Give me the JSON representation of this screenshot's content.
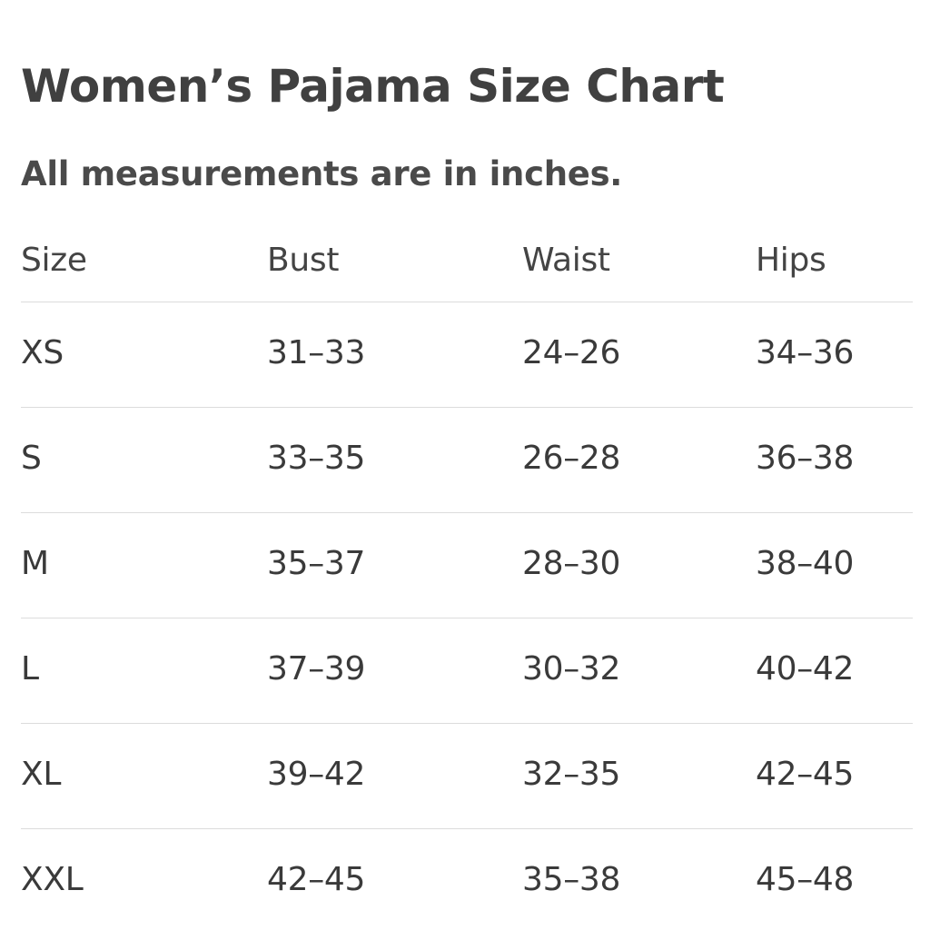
{
  "title": "Women’s Pajama Size Chart",
  "subtitle": "All measurements are in inches.",
  "table": {
    "headers": [
      "Size",
      "Bust",
      "Waist",
      "Hips"
    ],
    "rows": [
      [
        "XS",
        "31–33",
        "24–26",
        "34–36"
      ],
      [
        "S",
        "33–35",
        "26–28",
        "36–38"
      ],
      [
        "M",
        "35–37",
        "28–30",
        "38–40"
      ],
      [
        "L",
        "37–39",
        "30–32",
        "40–42"
      ],
      [
        "XL",
        "39–42",
        "32–35",
        "42–45"
      ],
      [
        "XXL",
        "42–45",
        "35–38",
        "45–48"
      ]
    ]
  },
  "colors": {
    "text": "#3a3a3a",
    "divider": "#dcdcdc",
    "background": "#ffffff"
  }
}
